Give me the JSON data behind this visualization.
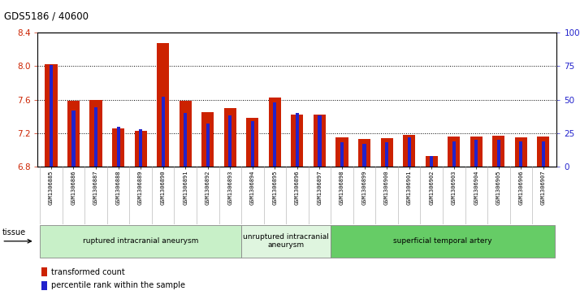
{
  "title": "GDS5186 / 40600",
  "samples": [
    "GSM1306885",
    "GSM1306886",
    "GSM1306887",
    "GSM1306888",
    "GSM1306889",
    "GSM1306890",
    "GSM1306891",
    "GSM1306892",
    "GSM1306893",
    "GSM1306894",
    "GSM1306895",
    "GSM1306896",
    "GSM1306897",
    "GSM1306898",
    "GSM1306899",
    "GSM1306900",
    "GSM1306901",
    "GSM1306902",
    "GSM1306903",
    "GSM1306904",
    "GSM1306905",
    "GSM1306906",
    "GSM1306907"
  ],
  "red_values": [
    8.02,
    7.59,
    7.6,
    7.26,
    7.23,
    8.27,
    7.59,
    7.45,
    7.5,
    7.38,
    7.62,
    7.42,
    7.42,
    7.15,
    7.13,
    7.14,
    7.18,
    6.93,
    7.16,
    7.16,
    7.17,
    7.15,
    7.16
  ],
  "blue_values_pct": [
    76,
    42,
    44,
    30,
    28,
    52,
    40,
    32,
    38,
    34,
    48,
    40,
    38,
    18,
    17,
    18,
    22,
    8,
    19,
    20,
    20,
    19,
    19
  ],
  "y_min": 6.8,
  "y_max": 8.4,
  "y_ticks": [
    6.8,
    7.2,
    7.6,
    8.0,
    8.4
  ],
  "right_y_ticks": [
    0,
    25,
    50,
    75,
    100
  ],
  "right_y_labels": [
    "0",
    "25",
    "50",
    "75",
    "100%"
  ],
  "groups": [
    {
      "label": "ruptured intracranial aneurysm",
      "start": 0,
      "end": 9,
      "color": "#c8f0c8"
    },
    {
      "label": "unruptured intracranial\naneurysm",
      "start": 9,
      "end": 13,
      "color": "#dff5df"
    },
    {
      "label": "superficial temporal artery",
      "start": 13,
      "end": 23,
      "color": "#66cc66"
    }
  ],
  "bar_color_red": "#cc2200",
  "bar_color_blue": "#2222cc",
  "tick_bg_color": "#d0d0d0",
  "plot_bg": "#ffffff",
  "bar_width": 0.55,
  "blue_bar_width": 0.15,
  "legend_red_label": "transformed count",
  "legend_blue_label": "percentile rank within the sample",
  "tissue_label": "tissue"
}
